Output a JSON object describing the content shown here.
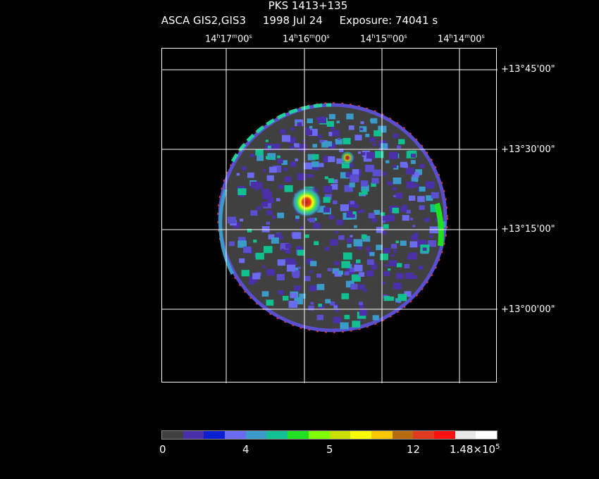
{
  "header": {
    "object": "PKS 1413+135",
    "instrument": "ASCA GIS2,GIS3",
    "date": "1998 Jul 24",
    "exposure": "Exposure: 74041 s"
  },
  "ra_labels": [
    {
      "h": "14",
      "m": "17",
      "s": "00"
    },
    {
      "h": "14",
      "m": "16",
      "s": "00"
    },
    {
      "h": "14",
      "m": "15",
      "s": "00"
    },
    {
      "h": "14",
      "m": "14",
      "s": "00"
    }
  ],
  "dec_labels": [
    "+13°45'00\"",
    "+13°30'00\"",
    "+13°15'00\"",
    "+13°00'00\""
  ],
  "colorbar": {
    "colors": [
      "#404040",
      "#4a2fa8",
      "#0a1fd0",
      "#6b6bf0",
      "#3a9ac8",
      "#10c090",
      "#20e020",
      "#80ff00",
      "#c8e000",
      "#ffff00",
      "#ffc800",
      "#b86a10",
      "#e03a20",
      "#ff1010",
      "#e8e8e8",
      "#ffffff"
    ],
    "labels": [
      "0",
      "4",
      "5",
      "12",
      "1.48×10"
    ],
    "label_exp": "5"
  }
}
